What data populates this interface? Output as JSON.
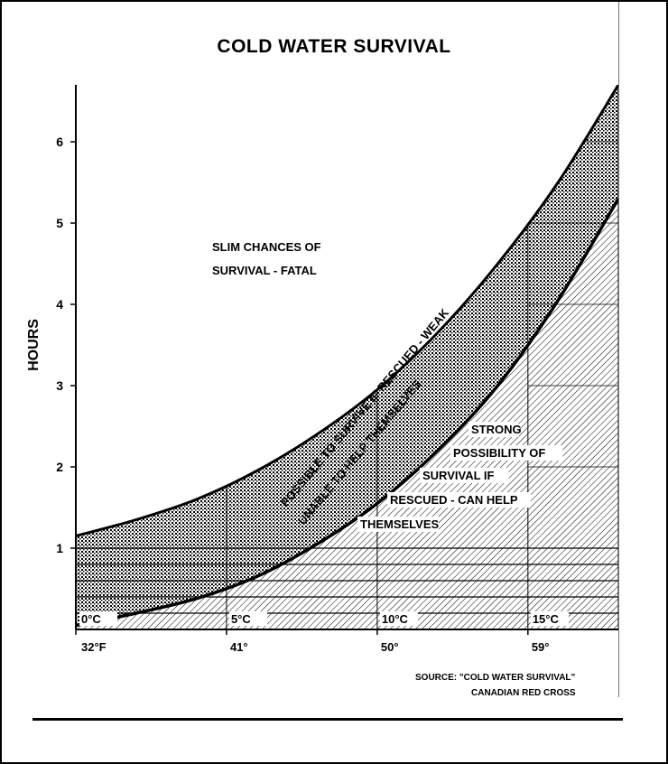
{
  "chart_data": {
    "type": "area",
    "title": "COLD WATER SURVIVAL",
    "xlabel": "",
    "ylabel": "HOURS",
    "x_unit": "°C",
    "xlim": [
      0,
      18
    ],
    "ylim": [
      0,
      6.7
    ],
    "yticks": [
      1,
      2,
      3,
      4,
      5,
      6
    ],
    "xticks_celsius": [
      {
        "value": 0,
        "label": "0°C"
      },
      {
        "value": 5,
        "label": "5°C"
      },
      {
        "value": 10,
        "label": "10°C"
      },
      {
        "value": 15,
        "label": "15°C"
      }
    ],
    "xticks_fahrenheit": [
      {
        "value": 0,
        "label": "32°F"
      },
      {
        "value": 5,
        "label": "41°"
      },
      {
        "value": 10,
        "label": "50°"
      },
      {
        "value": 15,
        "label": "59°"
      }
    ],
    "series": [
      {
        "x": [
          0,
          2,
          4,
          6,
          8,
          10,
          12,
          14,
          16,
          18
        ],
        "values": [
          1.15,
          1.35,
          1.6,
          1.95,
          2.4,
          2.95,
          3.65,
          4.5,
          5.5,
          6.7
        ]
      },
      {
        "x": [
          0,
          2,
          4,
          6,
          8,
          10,
          12,
          14,
          16,
          18
        ],
        "values": [
          0.05,
          0.2,
          0.38,
          0.65,
          1.05,
          1.55,
          2.2,
          3.0,
          4.05,
          5.3
        ]
      }
    ],
    "regions": [
      {
        "lines": [
          "SLIM CHANCES OF",
          "SURVIVAL - FATAL"
        ]
      },
      {
        "lines": [
          "POSSIBLE TO SURVIVE IF RESCUED - WEAK",
          "UNABLE TO HELP THEMSELVES"
        ]
      },
      {
        "lines": [
          "STRONG",
          "POSSIBILITY OF",
          "SURVIVAL IF",
          "RESCUED - CAN HELP",
          "THEMSELVES"
        ]
      }
    ],
    "source": [
      "SOURCE: \"COLD WATER SURVIVAL\"",
      "CANADIAN RED CROSS"
    ],
    "grid": true,
    "legend": "none"
  }
}
